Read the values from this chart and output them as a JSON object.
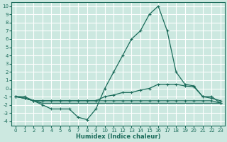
{
  "xlabel": "Humidex (Indice chaleur)",
  "bg_color": "#cce8e0",
  "grid_color": "#ffffff",
  "line_color": "#1a6b5a",
  "xlim": [
    -0.5,
    23.5
  ],
  "ylim": [
    -4.5,
    10.5
  ],
  "xticks": [
    0,
    1,
    2,
    3,
    4,
    5,
    6,
    7,
    8,
    9,
    10,
    11,
    12,
    13,
    14,
    15,
    16,
    17,
    18,
    19,
    20,
    21,
    22,
    23
  ],
  "yticks": [
    -4,
    -3,
    -2,
    -1,
    0,
    1,
    2,
    3,
    4,
    5,
    6,
    7,
    8,
    9,
    10
  ],
  "series": [
    {
      "x": [
        0,
        1,
        2,
        3,
        4,
        5,
        6,
        7,
        8,
        9,
        10,
        11,
        12,
        13,
        14,
        15,
        16,
        17,
        18,
        19,
        20,
        21,
        22,
        23
      ],
      "y": [
        -1,
        -1,
        -1.5,
        -2,
        -2.5,
        -2.5,
        -2.5,
        -3.5,
        -3.8,
        -2.5,
        0,
        2,
        4,
        6,
        7,
        9,
        10,
        7,
        2,
        0.5,
        0.3,
        -1,
        -1,
        -1.8
      ],
      "marker": "+"
    },
    {
      "x": [
        0,
        1,
        2,
        3,
        4,
        5,
        6,
        7,
        8,
        9,
        10,
        11,
        12,
        13,
        14,
        15,
        16,
        17,
        18,
        19,
        20,
        21,
        22,
        23
      ],
      "y": [
        -1,
        -1.2,
        -1.5,
        -1.5,
        -1.5,
        -1.5,
        -1.5,
        -1.5,
        -1.5,
        -1.5,
        -1,
        -0.8,
        -0.5,
        -0.5,
        -0.2,
        0,
        0.5,
        0.5,
        0.5,
        0.3,
        0.2,
        -1,
        -1.2,
        -1.5
      ],
      "marker": "+"
    },
    {
      "x": [
        0,
        1,
        2,
        3,
        4,
        5,
        6,
        7,
        8,
        9,
        10,
        11,
        12,
        13,
        14,
        15,
        16,
        17,
        18,
        19,
        20,
        21,
        22,
        23
      ],
      "y": [
        -1,
        -1.2,
        -1.5,
        -1.5,
        -1.5,
        -1.5,
        -1.5,
        -1.5,
        -1.5,
        -1.5,
        -1.5,
        -1.5,
        -1.5,
        -1.5,
        -1.5,
        -1.5,
        -1.5,
        -1.5,
        -1.5,
        -1.5,
        -1.5,
        -1.5,
        -1.5,
        -1.8
      ],
      "marker": "+"
    },
    {
      "x": [
        0,
        1,
        2,
        3,
        4,
        5,
        6,
        7,
        8,
        9,
        10,
        11,
        12,
        13,
        14,
        15,
        16,
        17,
        18,
        19,
        20,
        21,
        22,
        23
      ],
      "y": [
        -1,
        -1.2,
        -1.5,
        -1.8,
        -1.8,
        -1.8,
        -1.8,
        -1.8,
        -1.8,
        -1.8,
        -1.8,
        -1.8,
        -1.8,
        -1.8,
        -1.8,
        -1.8,
        -1.8,
        -1.8,
        -1.8,
        -1.8,
        -1.8,
        -1.8,
        -1.8,
        -1.8
      ],
      "marker": null
    }
  ]
}
